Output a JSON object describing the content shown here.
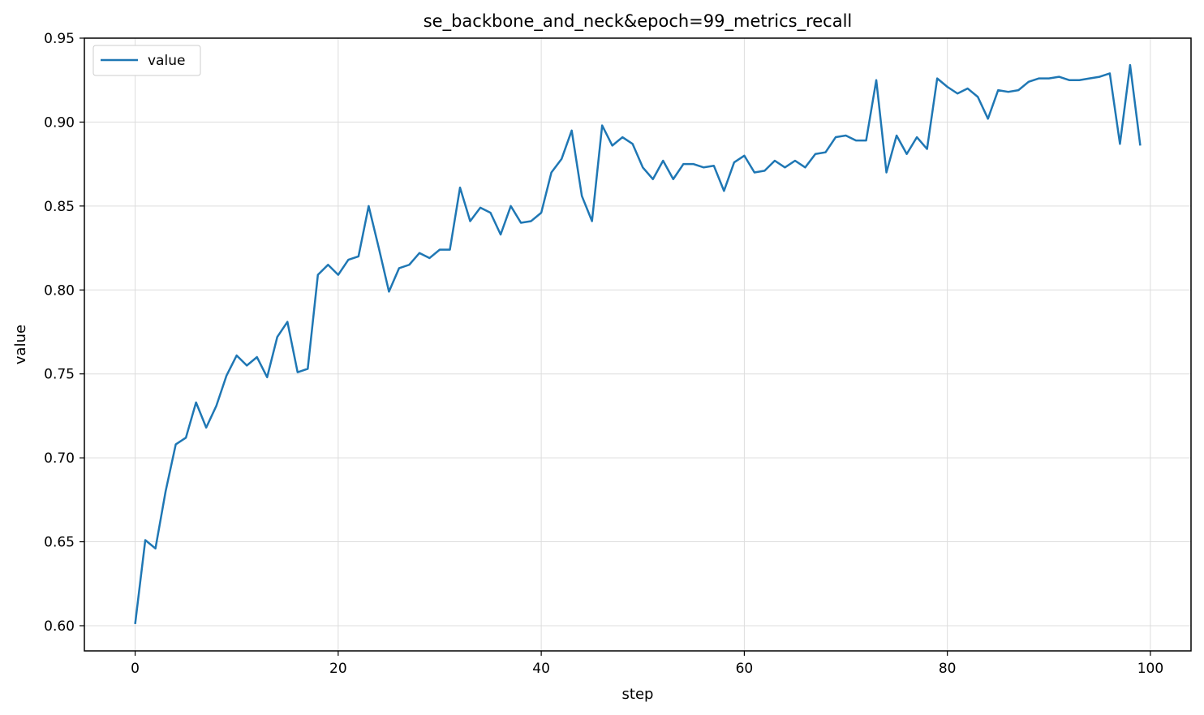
{
  "chart_data": {
    "type": "line",
    "title": "se_backbone_and_neck&epoch=99_metrics_recall",
    "xlabel": "step",
    "ylabel": "value",
    "xlim": [
      -5,
      104
    ],
    "ylim": [
      0.585,
      0.95
    ],
    "xticks": [
      0,
      20,
      40,
      60,
      80,
      100
    ],
    "yticks": [
      0.6,
      0.65,
      0.7,
      0.75,
      0.8,
      0.85,
      0.9,
      0.95
    ],
    "grid": true,
    "legend_position": "upper-left",
    "colors": {
      "series": "#1f77b4",
      "grid": "#dddddd",
      "axis": "#000000"
    },
    "series": [
      {
        "name": "value",
        "x": [
          0,
          1,
          2,
          3,
          4,
          5,
          6,
          7,
          8,
          9,
          10,
          11,
          12,
          13,
          14,
          15,
          16,
          17,
          18,
          19,
          20,
          21,
          22,
          23,
          24,
          25,
          26,
          27,
          28,
          29,
          30,
          31,
          32,
          33,
          34,
          35,
          36,
          37,
          38,
          39,
          40,
          41,
          42,
          43,
          44,
          45,
          46,
          47,
          48,
          49,
          50,
          51,
          52,
          53,
          54,
          55,
          56,
          57,
          58,
          59,
          60,
          61,
          62,
          63,
          64,
          65,
          66,
          67,
          68,
          69,
          70,
          71,
          72,
          73,
          74,
          75,
          76,
          77,
          78,
          79,
          80,
          81,
          82,
          83,
          84,
          85,
          86,
          87,
          88,
          89,
          90,
          91,
          92,
          93,
          94,
          95,
          96,
          97,
          98,
          99
        ],
        "values": [
          0.601,
          0.651,
          0.646,
          0.68,
          0.708,
          0.712,
          0.733,
          0.718,
          0.731,
          0.749,
          0.761,
          0.755,
          0.76,
          0.748,
          0.772,
          0.781,
          0.751,
          0.753,
          0.809,
          0.815,
          0.809,
          0.818,
          0.82,
          0.85,
          0.825,
          0.799,
          0.813,
          0.815,
          0.822,
          0.819,
          0.824,
          0.824,
          0.861,
          0.841,
          0.849,
          0.846,
          0.833,
          0.85,
          0.84,
          0.841,
          0.846,
          0.87,
          0.878,
          0.895,
          0.856,
          0.841,
          0.898,
          0.886,
          0.891,
          0.887,
          0.873,
          0.866,
          0.877,
          0.866,
          0.875,
          0.875,
          0.873,
          0.874,
          0.859,
          0.876,
          0.88,
          0.87,
          0.871,
          0.877,
          0.873,
          0.877,
          0.873,
          0.881,
          0.882,
          0.891,
          0.892,
          0.889,
          0.889,
          0.925,
          0.87,
          0.892,
          0.881,
          0.891,
          0.884,
          0.926,
          0.921,
          0.917,
          0.92,
          0.915,
          0.902,
          0.919,
          0.918,
          0.919,
          0.924,
          0.926,
          0.926,
          0.927,
          0.925,
          0.925,
          0.926,
          0.927,
          0.929,
          0.887,
          0.934,
          0.886
        ]
      }
    ]
  }
}
